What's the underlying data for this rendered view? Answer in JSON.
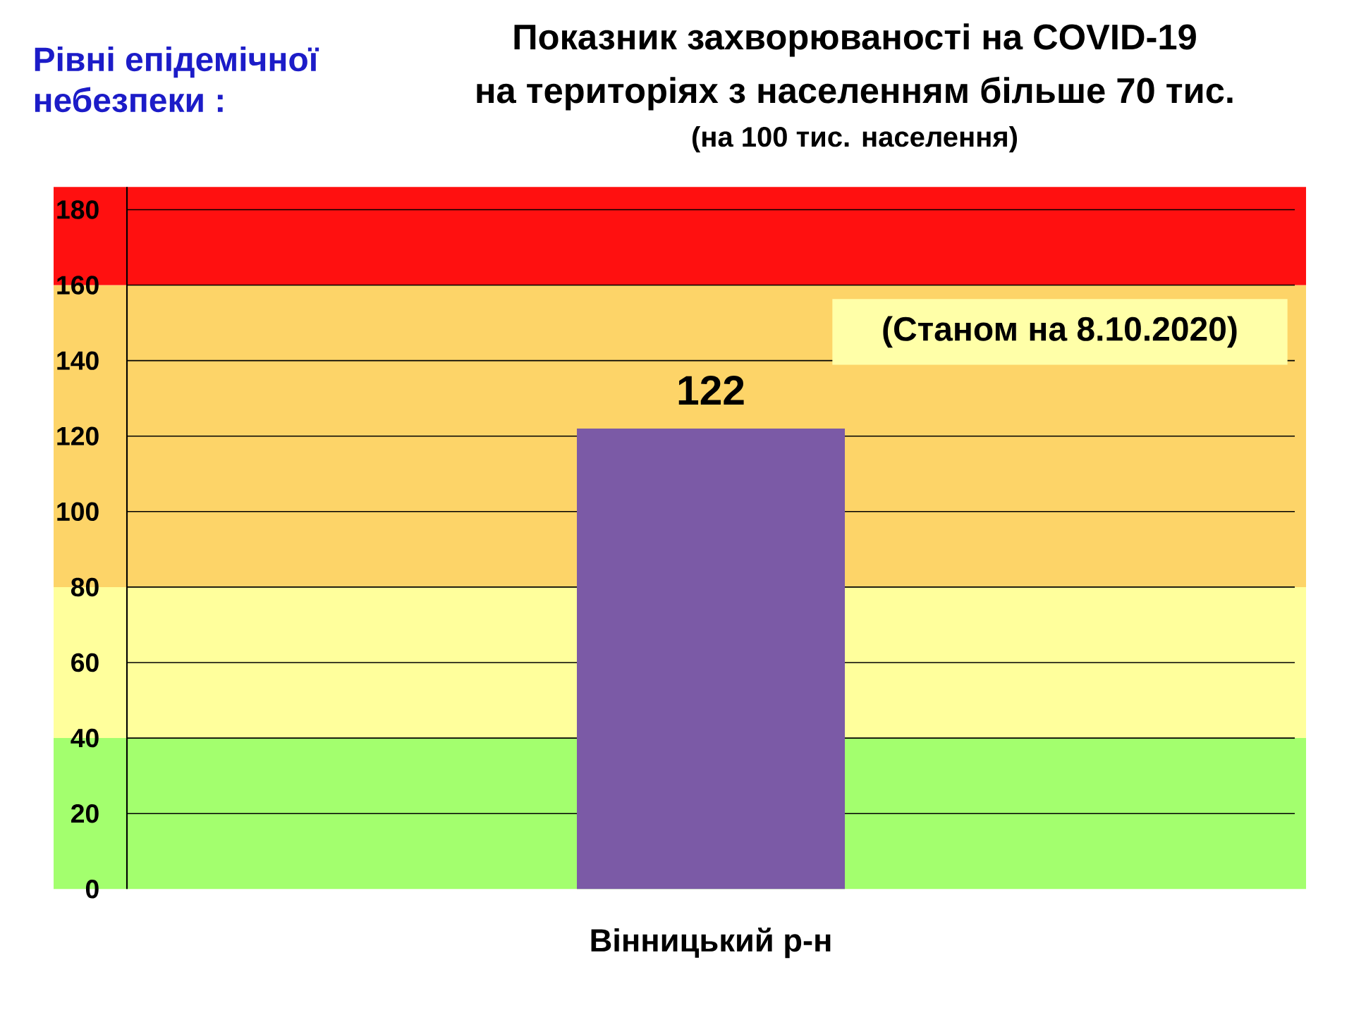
{
  "chart_data": {
    "type": "bar",
    "title": "Показник захворюваності на COVID-19 на територіях з населенням більше 70 тис.",
    "subtitle": "(на 100 тис. населення)",
    "categories": [
      "Вінницький р-н"
    ],
    "values": [
      122
    ],
    "color": "#7b5aa6",
    "data_labels": true,
    "ylim": [
      0,
      186
    ],
    "yticks": [
      0,
      20,
      40,
      60,
      80,
      100,
      120,
      140,
      160,
      180
    ],
    "grid": "y",
    "bands": [
      {
        "axis": "y",
        "from": 0,
        "to": 40,
        "color": "#a3ff6e"
      },
      {
        "axis": "y",
        "from": 40,
        "to": 80,
        "color": "#ffff9c"
      },
      {
        "axis": "y",
        "from": 80,
        "to": 160,
        "color": "#fdd468"
      },
      {
        "axis": "y",
        "from": 160,
        "to": 186,
        "color": "#ff1010"
      }
    ],
    "annotations": [
      "Рівні епідемічної небезпеки :",
      "(Станом на 8.10.2020)"
    ]
  }
}
